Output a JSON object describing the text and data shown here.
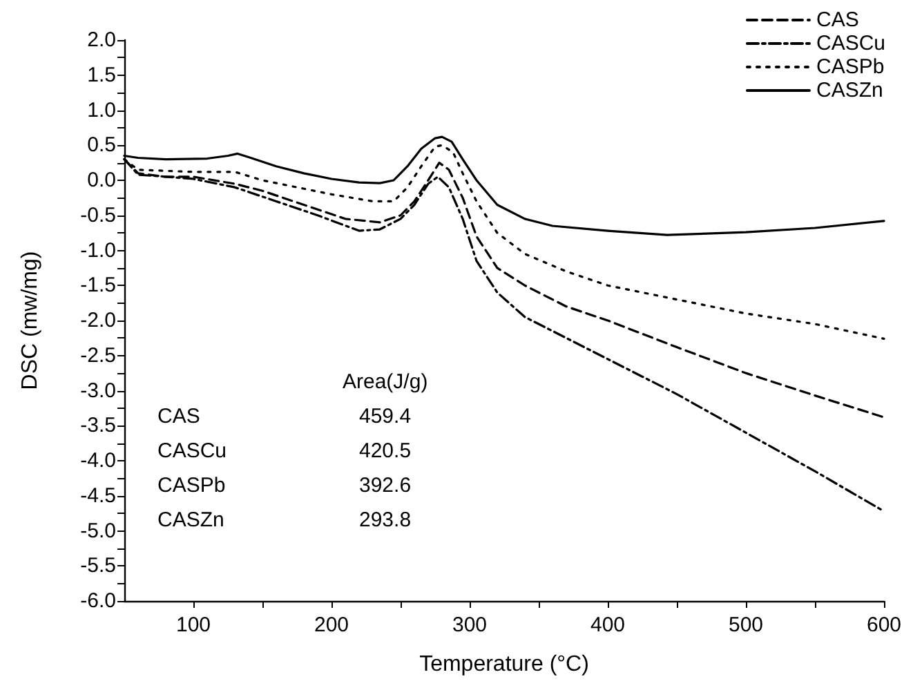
{
  "chart_data": {
    "type": "line",
    "xlabel": "Temperature (°C)",
    "ylabel": "DSC (mw/mg)",
    "xlim": [
      50,
      600
    ],
    "xticks": [
      100,
      {
        "value": 150,
        "label": null
      },
      200,
      {
        "value": 250,
        "label": null
      },
      300,
      {
        "value": 350,
        "label": null
      },
      400,
      {
        "value": 450,
        "label": null
      },
      500,
      {
        "value": 550,
        "label": null
      },
      600
    ],
    "ylim": [
      -6,
      2
    ],
    "yticks": [
      {
        "value": -6,
        "label": "-6.0"
      },
      {
        "value": -5.75,
        "label": null
      },
      {
        "value": -5.5,
        "label": "-5.5"
      },
      {
        "value": -5.25,
        "label": null
      },
      {
        "value": -5,
        "label": "-5.0"
      },
      {
        "value": -4.75,
        "label": null
      },
      {
        "value": -4.5,
        "label": "-4.5"
      },
      {
        "value": -4.25,
        "label": null
      },
      {
        "value": -4,
        "label": "-4.0"
      },
      {
        "value": -3.75,
        "label": null
      },
      {
        "value": -3.5,
        "label": "-3.5"
      },
      {
        "value": -3.25,
        "label": null
      },
      {
        "value": -3,
        "label": "-3.0"
      },
      {
        "value": -2.75,
        "label": null
      },
      {
        "value": -2.5,
        "label": "-2.5"
      },
      {
        "value": -2.25,
        "label": null
      },
      {
        "value": -2,
        "label": "-2.0"
      },
      {
        "value": -1.75,
        "label": null
      },
      {
        "value": -1.5,
        "label": "-1.5"
      },
      {
        "value": -1.25,
        "label": null
      },
      {
        "value": -1,
        "label": "-1.0"
      },
      {
        "value": -0.75,
        "label": null
      },
      {
        "value": -0.5,
        "label": "-0.5"
      },
      {
        "value": -0.25,
        "label": null
      },
      {
        "value": 0,
        "label": "0.0"
      },
      {
        "value": 0.25,
        "label": null
      },
      {
        "value": 0.5,
        "label": "0.5"
      },
      {
        "value": 0.75,
        "label": null
      },
      {
        "value": 1,
        "label": "1.0"
      },
      {
        "value": 1.25,
        "label": null
      },
      {
        "value": 1.5,
        "label": "1.5"
      },
      {
        "value": 1.75,
        "label": null
      },
      {
        "value": 2,
        "label": "2.0"
      }
    ],
    "grid": false,
    "legend": "top right",
    "marker": "none",
    "series": [
      {
        "name": "CAS",
        "color": "#000000",
        "line_style": "dashed",
        "x": [
          50,
          60,
          80,
          100,
          130,
          150,
          180,
          210,
          235,
          250,
          260,
          270,
          278,
          285,
          295,
          305,
          320,
          340,
          370,
          400,
          450,
          500,
          550,
          600
        ],
        "values": [
          0.3,
          0.1,
          0.05,
          0.05,
          -0.05,
          -0.15,
          -0.35,
          -0.55,
          -0.6,
          -0.5,
          -0.3,
          0.0,
          0.25,
          0.15,
          -0.25,
          -0.8,
          -1.25,
          -1.5,
          -1.8,
          -2.0,
          -2.38,
          -2.75,
          -3.07,
          -3.38
        ]
      },
      {
        "name": "CASCu",
        "color": "#000000",
        "line_style": "dashdot",
        "x": [
          50,
          60,
          80,
          100,
          130,
          160,
          190,
          220,
          235,
          250,
          260,
          270,
          277,
          285,
          295,
          305,
          320,
          340,
          370,
          400,
          450,
          500,
          550,
          600
        ],
        "values": [
          0.3,
          0.08,
          0.05,
          0.02,
          -0.1,
          -0.3,
          -0.5,
          -0.72,
          -0.7,
          -0.55,
          -0.35,
          -0.05,
          0.05,
          -0.1,
          -0.55,
          -1.15,
          -1.6,
          -1.95,
          -2.25,
          -2.55,
          -3.05,
          -3.6,
          -4.15,
          -4.72
        ]
      },
      {
        "name": "CASPb",
        "color": "#000000",
        "line_style": "dotted",
        "x": [
          50,
          60,
          100,
          130,
          150,
          200,
          230,
          245,
          255,
          265,
          275,
          280,
          288,
          295,
          305,
          320,
          340,
          370,
          400,
          450,
          500,
          550,
          600
        ],
        "values": [
          0.3,
          0.15,
          0.12,
          0.12,
          0.0,
          -0.2,
          -0.3,
          -0.3,
          -0.1,
          0.2,
          0.48,
          0.5,
          0.4,
          0.1,
          -0.3,
          -0.75,
          -1.05,
          -1.3,
          -1.5,
          -1.7,
          -1.9,
          -2.05,
          -2.26
        ]
      },
      {
        "name": "CASZn",
        "color": "#000000",
        "line_style": "solid",
        "x": [
          50,
          60,
          80,
          110,
          125,
          132,
          140,
          160,
          180,
          200,
          220,
          235,
          245,
          255,
          265,
          275,
          280,
          287,
          295,
          305,
          320,
          340,
          360,
          400,
          443,
          500,
          550,
          600
        ],
        "values": [
          0.35,
          0.32,
          0.3,
          0.31,
          0.35,
          0.38,
          0.33,
          0.2,
          0.1,
          0.02,
          -0.03,
          -0.04,
          0.0,
          0.2,
          0.45,
          0.6,
          0.62,
          0.55,
          0.3,
          0.0,
          -0.35,
          -0.55,
          -0.65,
          -0.72,
          -0.78,
          -0.74,
          -0.68,
          -0.58
        ]
      }
    ],
    "annotations": [
      "Area(J/g)",
      "CAS",
      "459.4",
      "CASCu",
      "420.5",
      "CASPb",
      "392.6",
      "CASZn",
      "293.8"
    ]
  }
}
